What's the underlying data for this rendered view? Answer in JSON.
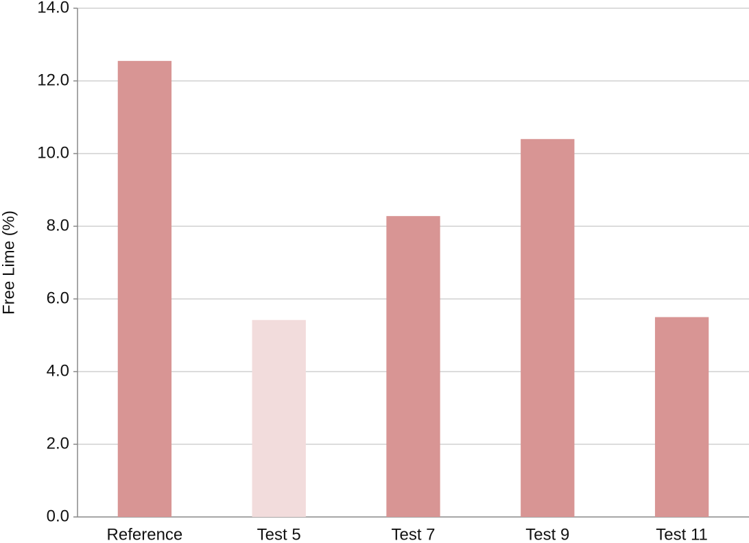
{
  "chart_data": {
    "type": "bar",
    "y_label": "Free Lime (%)",
    "categories": [
      "Reference",
      "Test 5",
      "Test 7",
      "Test 9",
      "Test 11"
    ],
    "values": [
      12.55,
      5.42,
      8.28,
      10.4,
      5.5
    ],
    "colors": [
      "#d89594",
      "#f2dcdc",
      "#d89594",
      "#d89594",
      "#d89594"
    ],
    "ylim": [
      0,
      14
    ],
    "yticks": [
      {
        "value": 0,
        "label": "0.0"
      },
      {
        "value": 2,
        "label": "2.0"
      },
      {
        "value": 4,
        "label": "4.0"
      },
      {
        "value": 6,
        "label": "6.0"
      },
      {
        "value": 8,
        "label": "8.0"
      },
      {
        "value": 10,
        "label": "10.0"
      },
      {
        "value": 12,
        "label": "12.0"
      },
      {
        "value": 14,
        "label": "14.0"
      }
    ],
    "grid": true
  }
}
